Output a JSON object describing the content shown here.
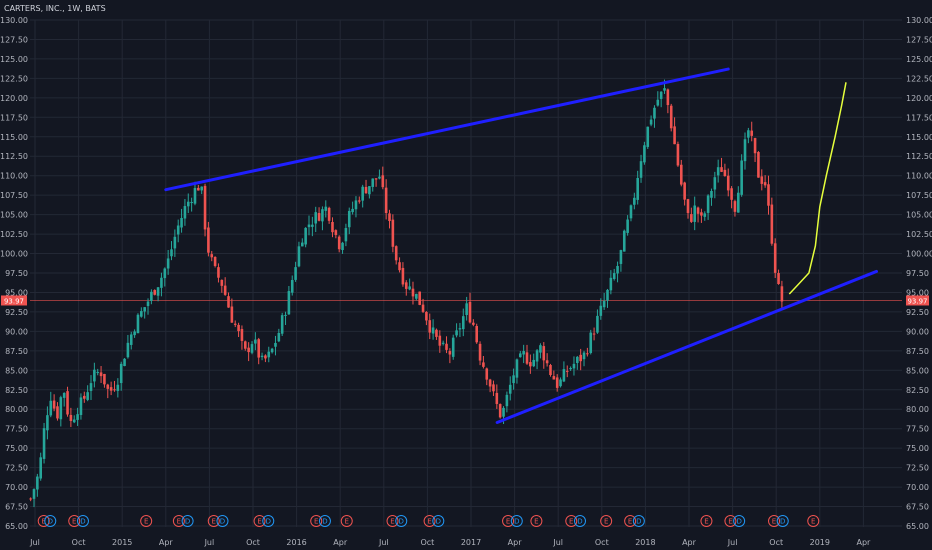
{
  "header": {
    "title": "CARTERS, INC., 1W, BATS"
  },
  "colors": {
    "background": "#131722",
    "grid": "#232835",
    "up": "#26a69a",
    "down": "#ef5350",
    "trendline": "#1f1fff",
    "projection": "#e6ff3c",
    "price_line": "#ef5350",
    "earnings_badge": "#ef5350",
    "dividend_badge": "#2196f3"
  },
  "chart_data": {
    "type": "candlestick",
    "title": "CARTERS, INC., 1W, BATS",
    "ylim": [
      65,
      130
    ],
    "y_ticks": [
      "130.00",
      "127.50",
      "125.00",
      "122.50",
      "120.00",
      "117.50",
      "115.00",
      "112.50",
      "110.00",
      "107.50",
      "105.00",
      "102.50",
      "100.00",
      "97.50",
      "95.00",
      "92.50",
      "90.00",
      "87.50",
      "85.00",
      "82.50",
      "80.00",
      "77.50",
      "75.00",
      "72.50",
      "70.00",
      "67.50",
      "65.00"
    ],
    "x_ticks": [
      {
        "label": "Jul",
        "t": 0
      },
      {
        "label": "Oct",
        "t": 1
      },
      {
        "label": "2015",
        "t": 2
      },
      {
        "label": "Apr",
        "t": 3
      },
      {
        "label": "Jul",
        "t": 4
      },
      {
        "label": "Oct",
        "t": 5
      },
      {
        "label": "2016",
        "t": 6
      },
      {
        "label": "Apr",
        "t": 7
      },
      {
        "label": "Jul",
        "t": 8
      },
      {
        "label": "Oct",
        "t": 9
      },
      {
        "label": "2017",
        "t": 10
      },
      {
        "label": "Apr",
        "t": 11
      },
      {
        "label": "Jul",
        "t": 12
      },
      {
        "label": "Oct",
        "t": 13
      },
      {
        "label": "2018",
        "t": 14
      },
      {
        "label": "Apr",
        "t": 15
      },
      {
        "label": "Jul",
        "t": 16
      },
      {
        "label": "Oct",
        "t": 17
      },
      {
        "label": "2019",
        "t": 18
      },
      {
        "label": "Apr",
        "t": 19
      }
    ],
    "current_price": {
      "value": 93.97,
      "label": "93.97"
    },
    "price_path": [
      [
        -0.1,
        68.5
      ],
      [
        0.1,
        72
      ],
      [
        0.2,
        77
      ],
      [
        0.35,
        82
      ],
      [
        0.5,
        79
      ],
      [
        0.65,
        83
      ],
      [
        0.8,
        78
      ],
      [
        0.95,
        80
      ],
      [
        1.1,
        81
      ],
      [
        1.3,
        84
      ],
      [
        1.5,
        85
      ],
      [
        1.7,
        82
      ],
      [
        1.9,
        84
      ],
      [
        2.1,
        88
      ],
      [
        2.3,
        91
      ],
      [
        2.5,
        93
      ],
      [
        2.7,
        95
      ],
      [
        2.9,
        97
      ],
      [
        3.05,
        99
      ],
      [
        3.25,
        103
      ],
      [
        3.45,
        106
      ],
      [
        3.65,
        108
      ],
      [
        3.8,
        109
      ],
      [
        3.95,
        101
      ],
      [
        4.1,
        98
      ],
      [
        4.3,
        96
      ],
      [
        4.5,
        92
      ],
      [
        4.65,
        90
      ],
      [
        4.8,
        87
      ],
      [
        5.0,
        89
      ],
      [
        5.2,
        86
      ],
      [
        5.4,
        87
      ],
      [
        5.6,
        90
      ],
      [
        5.8,
        94
      ],
      [
        5.95,
        98
      ],
      [
        6.1,
        102
      ],
      [
        6.3,
        104
      ],
      [
        6.5,
        105
      ],
      [
        6.7,
        106
      ],
      [
        6.85,
        103
      ],
      [
        7.0,
        101
      ],
      [
        7.15,
        104
      ],
      [
        7.3,
        106
      ],
      [
        7.5,
        108
      ],
      [
        7.7,
        109
      ],
      [
        7.9,
        110
      ],
      [
        8.0,
        107
      ],
      [
        8.15,
        103
      ],
      [
        8.3,
        99
      ],
      [
        8.5,
        96
      ],
      [
        8.7,
        95
      ],
      [
        8.9,
        93
      ],
      [
        9.1,
        90
      ],
      [
        9.3,
        88
      ],
      [
        9.5,
        87
      ],
      [
        9.7,
        90
      ],
      [
        9.9,
        93
      ],
      [
        10.05,
        91
      ],
      [
        10.2,
        87
      ],
      [
        10.4,
        84
      ],
      [
        10.55,
        81
      ],
      [
        10.7,
        79
      ],
      [
        10.85,
        82
      ],
      [
        11.0,
        85
      ],
      [
        11.2,
        87
      ],
      [
        11.4,
        86
      ],
      [
        11.6,
        88
      ],
      [
        11.8,
        85
      ],
      [
        12.0,
        83
      ],
      [
        12.2,
        85
      ],
      [
        12.4,
        86
      ],
      [
        12.6,
        87
      ],
      [
        12.8,
        90
      ],
      [
        13.0,
        93
      ],
      [
        13.2,
        96
      ],
      [
        13.4,
        99
      ],
      [
        13.55,
        103
      ],
      [
        13.7,
        106
      ],
      [
        13.85,
        111
      ],
      [
        14.0,
        115
      ],
      [
        14.15,
        118
      ],
      [
        14.3,
        120
      ],
      [
        14.45,
        121
      ],
      [
        14.55,
        118
      ],
      [
        14.7,
        113
      ],
      [
        14.85,
        108
      ],
      [
        15.0,
        104
      ],
      [
        15.15,
        106
      ],
      [
        15.3,
        104
      ],
      [
        15.45,
        107
      ],
      [
        15.6,
        110
      ],
      [
        15.75,
        111
      ],
      [
        15.9,
        109
      ],
      [
        16.05,
        106
      ],
      [
        16.2,
        111
      ],
      [
        16.35,
        116
      ],
      [
        16.45,
        114
      ],
      [
        16.6,
        110
      ],
      [
        16.75,
        109
      ],
      [
        16.9,
        102
      ],
      [
        17.0,
        97
      ],
      [
        17.1,
        94
      ],
      [
        17.2,
        93.97
      ]
    ],
    "trendlines": [
      {
        "from": [
          3.0,
          108.2
        ],
        "to": [
          15.9,
          123.7
        ]
      },
      {
        "from": [
          10.6,
          78.3
        ],
        "to": [
          19.3,
          97.7
        ]
      }
    ],
    "projection": [
      [
        17.3,
        94.8
      ],
      [
        17.5,
        96
      ],
      [
        17.75,
        97.5
      ],
      [
        17.9,
        101
      ],
      [
        18.0,
        106
      ],
      [
        18.15,
        110
      ],
      [
        18.35,
        115
      ],
      [
        18.5,
        119
      ],
      [
        18.6,
        122
      ]
    ],
    "events": [
      {
        "label": "E",
        "kind": "earnings",
        "t": 0.2
      },
      {
        "label": "D",
        "kind": "dividend",
        "t": 0.35
      },
      {
        "label": "E",
        "kind": "earnings",
        "t": 0.9
      },
      {
        "label": "D",
        "kind": "dividend",
        "t": 1.1
      },
      {
        "label": "E",
        "kind": "earnings",
        "t": 2.55
      },
      {
        "label": "E",
        "kind": "earnings",
        "t": 3.3
      },
      {
        "label": "D",
        "kind": "dividend",
        "t": 3.5
      },
      {
        "label": "E",
        "kind": "earnings",
        "t": 4.1
      },
      {
        "label": "D",
        "kind": "dividend",
        "t": 4.3
      },
      {
        "label": "E",
        "kind": "earnings",
        "t": 5.15
      },
      {
        "label": "D",
        "kind": "dividend",
        "t": 5.35
      },
      {
        "label": "E",
        "kind": "earnings",
        "t": 6.45
      },
      {
        "label": "D",
        "kind": "dividend",
        "t": 6.65
      },
      {
        "label": "E",
        "kind": "earnings",
        "t": 7.15
      },
      {
        "label": "E",
        "kind": "earnings",
        "t": 8.2
      },
      {
        "label": "D",
        "kind": "dividend",
        "t": 8.4
      },
      {
        "label": "E",
        "kind": "earnings",
        "t": 9.05
      },
      {
        "label": "D",
        "kind": "dividend",
        "t": 9.25
      },
      {
        "label": "E",
        "kind": "earnings",
        "t": 10.85
      },
      {
        "label": "D",
        "kind": "dividend",
        "t": 11.05
      },
      {
        "label": "E",
        "kind": "earnings",
        "t": 11.5
      },
      {
        "label": "E",
        "kind": "earnings",
        "t": 12.3
      },
      {
        "label": "D",
        "kind": "dividend",
        "t": 12.5
      },
      {
        "label": "E",
        "kind": "earnings",
        "t": 13.1
      },
      {
        "label": "E",
        "kind": "earnings",
        "t": 13.65
      },
      {
        "label": "D",
        "kind": "dividend",
        "t": 13.85
      },
      {
        "label": "E",
        "kind": "earnings",
        "t": 15.4
      },
      {
        "label": "E",
        "kind": "earnings",
        "t": 15.95
      },
      {
        "label": "D",
        "kind": "dividend",
        "t": 16.15
      },
      {
        "label": "E",
        "kind": "earnings",
        "t": 16.95
      },
      {
        "label": "D",
        "kind": "dividend",
        "t": 17.15
      },
      {
        "label": "E",
        "kind": "earnings",
        "t": 17.85
      }
    ]
  }
}
